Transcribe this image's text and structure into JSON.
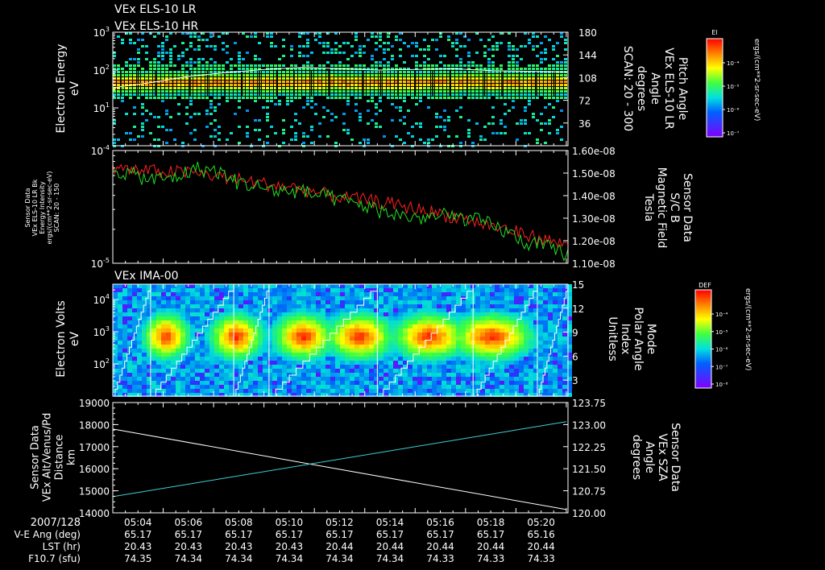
{
  "header": {
    "line1": "VEx ELS-10 LR",
    "line2": "VEx ELS-10 HR"
  },
  "colorbars": {
    "els": {
      "title": "El",
      "units": "ergs/(cm**2-sr-sec-eV)",
      "ticks": [
        "10⁻⁴",
        "10⁻⁵",
        "10⁻⁶",
        "10⁻⁷"
      ]
    },
    "ima": {
      "title": "DEF",
      "units": "ergs/(cm**2-sr-sec-eV)",
      "ticks": [
        "10⁻⁴",
        "10⁻⁵",
        "10⁻⁶",
        "10⁻⁷",
        "10⁻⁸"
      ]
    }
  },
  "chart_data": [
    {
      "type": "heatmap",
      "id": "panel1",
      "ylabel": [
        "Electron Energy",
        "eV"
      ],
      "ylim": [
        1,
        1000
      ],
      "yscale": "log",
      "yticks": [
        {
          "base": "10",
          "exp": "3",
          "value": 1000
        },
        {
          "base": "10",
          "exp": "2",
          "value": 100
        },
        {
          "base": "10",
          "exp": "1",
          "value": 10
        }
      ],
      "right_axis": {
        "label": [
          "Pitch Angle",
          "VEx ELS-10 LR",
          "Angle",
          "degrees",
          "SCAN: 20 - 300"
        ],
        "ylim": [
          0,
          180
        ],
        "ticks": [
          "180",
          "144",
          "108",
          "72",
          "36"
        ]
      },
      "band_center_eV": 45,
      "pitch_angle_line_deg": [
        92,
        100,
        110,
        116,
        121,
        124,
        122,
        120,
        121,
        122,
        119,
        118,
        117
      ]
    },
    {
      "type": "line",
      "id": "panel2",
      "ylabel": [
        "Sensor Data",
        "VEx ELS-10 LR Bk",
        "Energy Intensity",
        "ergs/(cm**2-sr-sec-eV)",
        "SCAN: 20 - 150"
      ],
      "ylim": [
        1e-05,
        0.0001
      ],
      "yscale": "log",
      "yticks": [
        {
          "base": "10",
          "exp": "-4",
          "value": 0.0001
        },
        {
          "base": "10",
          "exp": "-5",
          "value": 1e-05
        }
      ],
      "right_axis": {
        "label": [
          "Sensor Data",
          "S/C B",
          "Magnetic Field",
          "Tesla"
        ],
        "ylim": [
          1.1e-08,
          1.6e-08
        ],
        "ticks": [
          "1.60e-08",
          "1.50e-08",
          "1.40e-08",
          "1.30e-08",
          "1.20e-08",
          "1.10e-08"
        ]
      },
      "series": [
        {
          "name": "VEx ELS-10 LR Bk",
          "color": "#ff2020",
          "values": [
            7e-05,
            6.7e-05,
            6.6e-05,
            6.5e-05,
            6.3e-05,
            6e-05,
            5.6e-05,
            5.2e-05,
            4.9e-05,
            4.6e-05,
            4.2e-05,
            3.9e-05,
            3.7e-05,
            3.5e-05,
            3.2e-05,
            3e-05,
            2.7e-05,
            2.5e-05,
            2.2e-05,
            2e-05,
            1.8e-05,
            1.6e-05,
            1.45e-05
          ]
        },
        {
          "name": "S/C B",
          "color": "#20e020",
          "values": [
            1.52e-08,
            1.49e-08,
            1.47e-08,
            1.48e-08,
            1.52e-08,
            1.51e-08,
            1.46e-08,
            1.44e-08,
            1.42e-08,
            1.42e-08,
            1.4e-08,
            1.38e-08,
            1.36e-08,
            1.33e-08,
            1.31e-08,
            1.3e-08,
            1.31e-08,
            1.3e-08,
            1.28e-08,
            1.24e-08,
            1.19e-08,
            1.17e-08,
            1.14e-08
          ]
        }
      ]
    },
    {
      "type": "heatmap",
      "id": "panel3",
      "title": "VEx IMA-00",
      "ylabel": [
        "Electron Volts",
        "eV"
      ],
      "ylim": [
        10,
        30000
      ],
      "yscale": "log",
      "yticks": [
        {
          "base": "10",
          "exp": "4",
          "value": 10000
        },
        {
          "base": "10",
          "exp": "3",
          "value": 1000
        },
        {
          "base": "10",
          "exp": "2",
          "value": 100
        }
      ],
      "right_axis": {
        "label": [
          "Mode",
          "Polar Angle",
          "Index",
          "Unitless"
        ],
        "ylim": [
          1,
          15
        ],
        "ticks": [
          "15",
          "12",
          "9",
          "6",
          "3"
        ]
      },
      "scan_boundaries": [
        "05:04:30",
        "05:07:48",
        "05:09:12",
        "05:13:30",
        "05:17:18",
        "05:19:51"
      ],
      "blob_centers": [
        "05:05:08",
        "05:07:54",
        "05:10:34",
        "05:12:48",
        "05:15:35",
        "05:18:02"
      ],
      "blob_energy_eV": 700
    },
    {
      "type": "line",
      "id": "panel4",
      "ylabel": [
        "Sensor Data",
        "VEx Alt/Venus/Pd",
        "Distance",
        "km"
      ],
      "ylim": [
        14000,
        19000
      ],
      "yticks": [
        "19000",
        "18000",
        "17000",
        "16000",
        "15000",
        "14000"
      ],
      "right_axis": {
        "label": [
          "Sensor Data",
          "VEx SZA",
          "Angle",
          "degrees"
        ],
        "ylim": [
          120.0,
          123.75
        ],
        "ticks": [
          "123.75",
          "123.00",
          "122.25",
          "121.50",
          "120.75",
          "120.00"
        ]
      },
      "series": [
        {
          "name": "VEx Alt/Venus/Pd",
          "color": "#ffffff",
          "x": [
            "05:03:00",
            "05:21:00"
          ],
          "values": [
            17800,
            14150
          ]
        },
        {
          "name": "VEx SZA",
          "color": "#40d0d0",
          "x": [
            "05:03:00",
            "05:21:00"
          ],
          "values": [
            120.55,
            123.1
          ]
        }
      ]
    }
  ],
  "x_axis": {
    "date": "2007/128",
    "ticks": [
      "05:04",
      "05:06",
      "05:08",
      "05:10",
      "05:12",
      "05:14",
      "05:16",
      "05:18",
      "05:20"
    ],
    "rows": [
      {
        "label": "V-E Ang (deg)",
        "values": [
          "65.17",
          "65.17",
          "65.17",
          "65.17",
          "65.17",
          "65.17",
          "65.17",
          "65.17",
          "65.16"
        ]
      },
      {
        "label": "LST (hr)",
        "values": [
          "20.43",
          "20.43",
          "20.43",
          "20.43",
          "20.44",
          "20.44",
          "20.44",
          "20.44",
          "20.44"
        ]
      },
      {
        "label": "F10.7 (sfu)",
        "values": [
          "74.35",
          "74.34",
          "74.34",
          "74.34",
          "74.34",
          "74.34",
          "74.33",
          "74.33",
          "74.33"
        ]
      }
    ]
  }
}
